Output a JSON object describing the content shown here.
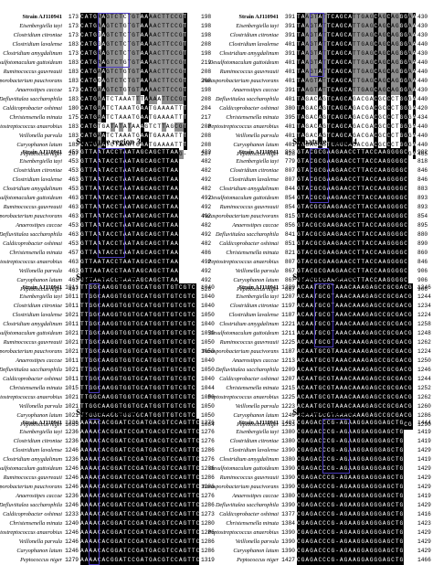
{
  "species": [
    "Strain AJ110941",
    "Eisenbergiella tayi",
    "Clostridium citroniae",
    "Clostridium lavalense",
    "Clostridium amygdalinum",
    "Desulfotomaculum guttoideum",
    "Ruminococcus gauvreauii",
    "Parasporobacterium paucivorans",
    "Anaerostipes caccae",
    "Defluviitalea saccharophila",
    "Caldicoprobacter oshimai",
    "Christensenella minuta",
    "Peptostreptococcus anaerobius",
    "Veillonella parvula",
    "Caryophanon latum",
    "Peptococcus niger"
  ],
  "panels": [
    {
      "title": "",
      "start": [
        173,
        173,
        173,
        183,
        173,
        183,
        183,
        183,
        173,
        183,
        180,
        175,
        183,
        183,
        183,
        207
      ],
      "end": [
        198,
        198,
        198,
        208,
        198,
        219,
        208,
        208,
        198,
        208,
        204,
        217,
        208,
        208,
        208,
        207
      ],
      "seq": [
        "CATGAAGTCTCTGTAAAACTTCCGT",
        "CATGAAGTCTGTGTAAAACTTCCGT",
        "CATGGAGTCTCTGTAAAACTTCCGT",
        "CATGGAGTCTCTGTAAAACTTCCGT",
        "CATGAAGTCTCTGTAAAACTTCCGT",
        "CATGAAGTCTGTGTAAAACTTCCGT",
        "CATGAAGTCTGTGTAAAACTTCCGT",
        "CATGGAGTCTCTGTAAAACTTCCGT",
        "CATGAAGTCTGTGTAAAACTTCCGT",
        "CATGAATCTAAATTTAAAATTCCGT",
        "CATGAATCTAAATGAATGAAAATTT",
        "CATGAATCTAAATGAATGAAAATTT",
        "CATGTGATATATAAAGTCTTAGCGT",
        "CATGAATCTAAATGAATGAAAATTT",
        "CATGAATCTAAATGAATGAAAATTT",
        "CCTGTA--AAACGAGGT-TTCG-G-"
      ],
      "box": [
        19,
        82,
        38,
        160
      ]
    },
    {
      "title": "",
      "start": [
        391,
        391,
        391,
        401,
        391,
        401,
        401,
        401,
        391,
        401,
        380,
        395,
        401,
        401,
        401,
        428
      ],
      "end": [
        430,
        430,
        430,
        440,
        430,
        440,
        440,
        440,
        430,
        440,
        420,
        434,
        440,
        440,
        440,
        465
      ],
      "seq": [
        "TAAGTATTCAGCATTGAGCAGCAGGGAAGA",
        "TAAGTATTCAGCATTGAGCAGCAGGGAAGA",
        "TAAGTATTCAGCATTGAGCAGCAGGGAAGA",
        "TAAGTATTCAGCATTGAGCAGCAGGGAAGA",
        "TAAGTATTCAGCATTGAGCAGCAGGGAAGA",
        "TAAGTATTCAGCATTGAGCAGCAGGGAAGA",
        "TAAGTATTCAGCATTGAGCAGCAGGGAAGA",
        "TAAGTATTCAGCATTGAGCAGCAGGGAAGA",
        "TAAGTATTCAGCATTGAGCAGCAGGGAAGA",
        "TAGACAGTCAGCAGACGACGCCCTGGGAAG",
        "TAGACAGTCAGCAGACGACGCCCTGGGAAG",
        "TAGACAGTCAGCAGACGACGCCCTGGGAAG",
        "TAGACAGTCAGCAGACGACGCCCTGGGAAG",
        "TAGACAGTCAGCAGACGACGCCCTGGGAAG",
        "TAGACAGTCAGCAGACGACGCCCTGGGAAG",
        "TAGACAGTCAGCAGACGACGCCCTGGGAAG"
      ],
      "box": [
        19,
        18,
        30,
        90
      ]
    },
    {
      "title": "Signature region 3",
      "start": [
        453,
        453,
        453,
        463,
        453,
        463,
        463,
        463,
        453,
        463,
        453,
        457,
        463,
        463,
        463,
        497
      ],
      "end": [
        482,
        482,
        482,
        492,
        482,
        492,
        492,
        492,
        482,
        492,
        482,
        486,
        492,
        492,
        492,
        526
      ],
      "seq": [
        "GTTAATACCTAATAGCAGCTTAA",
        "GTTAATACCTAATAGCAGCTTAA",
        "GTTAATACCTAATAGCAGCTTAA",
        "GTTAATACCTAATAGCAGCTTAA",
        "GTTAATACCTAATAGCAGCTTAA",
        "GTTAATACCTAATAGCAGCTTAA",
        "GTTAATACCTAATAGCAGCTTAA",
        "GTTAATACCTAATAGCAGCTTAA",
        "GTTAATACCTAATAGCAGCTTAA",
        "GTTAATACCTAATAGCAGCTTAA",
        "GTTAATACCTAATAGCAGCTTAA",
        "GTTAATACCTAATAGCAGCTTAA",
        "GTTAATACCTAATAGCAGCTTAA",
        "GTTAATACCTAATAGCAGCTTAA",
        "GTTAATACCTAATAGCAGCTTAA",
        "GTTAATACCTAATAGCAGCTTAA"
      ],
      "box": [
        18,
        4,
        8,
        130
      ]
    },
    {
      "title": "Signature region 4",
      "start": [
        863,
        779,
        807,
        807,
        844,
        854,
        854,
        815,
        856,
        841,
        851,
        821,
        807,
        867,
        867,
        867
      ],
      "end": [
        902,
        818,
        846,
        846,
        883,
        893,
        893,
        854,
        895,
        880,
        890,
        860,
        846,
        906,
        906,
        906
      ],
      "seq": [
        "GTACGCGAAGAACCTTACCAAGGGGC",
        "GTACGCGAAGAACCTTACCAAGGGGC",
        "GTACGCGAAGAACCTTACCAAGGGGC",
        "GTACGCGAAGAACCTTACCAAGGGGC",
        "GTACGCGAAGAACCTTACCAAGGGGC",
        "GTACGCGAAGAACCTTACCAAGGGGC",
        "GTACGCGAAGAACCTTACCAAGGGGC",
        "GTACGCGAAGAACCTTACCAAGGGGC",
        "GTACGCGAAGAACCTTACCAAGGGGC",
        "GTACGCGAAGAACCTTACCAAGGGGC",
        "GTACGCGAAGAACCTTACCAAGGGGC",
        "GTACGCGAAGAACCTTACCAAGGGGC",
        "GTACGCGAAGAACCTTACCAAGGGGC",
        "GTACGCGAAGAACCTTACCAAGGGGC",
        "GTACGCGAAGAACCTTACCAAGGGGC",
        "GTACGCGAAGAACCTTACCAAGGGGC"
      ],
      "box": [
        16,
        10,
        21,
        160
      ]
    },
    {
      "title": "Signature region 5",
      "start": [
        1011,
        1011,
        1011,
        1021,
        1011,
        1021,
        1021,
        1021,
        1011,
        1021,
        1011,
        1015,
        1021,
        1021,
        1021,
        1055
      ],
      "end": [
        1040,
        1040,
        1040,
        1050,
        1040,
        1050,
        1050,
        1050,
        1040,
        1050,
        1040,
        1044,
        1050,
        1050,
        1050,
        1084
      ],
      "seq": [
        "TTGGCAAGGTGGTGCATGGTTGTCGTC",
        "TTGGCAAGGTGGTGCATGGTTGTCGTC",
        "TTGGCAAGGTGGTGCATGGTTGTCGTC",
        "TTGGCAAGGTGGTGCATGGTTGTCGTC",
        "TTGGCAAGGTGGTGCATGGTTGTCGTC",
        "TTGGCAAGGTGGTGCATGGTTGTCGTC",
        "TTGGCAAGGTGGTGCATGGTTGTCGTC",
        "TTGGCAAGGTGGTGCATGGTTGTCGTC",
        "TTGGCAAGGTGGTGCATGGTTGTCGTC",
        "TTGGCAAGGTGGTGCATGGTTGTCGTC",
        "TTGGCAAGGTGGTGCATGGTTGTCGTC",
        "TTGGCAAGGTGGTGCATGGTTGTCGTC",
        "TTGGCAAGGTGGTGCATGGTTGTCGTC",
        "TTGGCAAGGTGGTGCATGGTTGTCGTC",
        "TTGGCAAGGTGGTGCATGGTTGTCGTC",
        "TTGGCAAGGTGGTGCATGGTTGTCGTC"
      ],
      "box": [
        18,
        2,
        8,
        100
      ]
    },
    {
      "title": "Signature region 6",
      "start": [
        1209,
        1207,
        1197,
        1187,
        1221,
        1211,
        1225,
        1187,
        1213,
        1209,
        1207,
        1215,
        1225,
        1223,
        1249,
        1253
      ],
      "end": [
        1246,
        1244,
        1234,
        1224,
        1258,
        1248,
        1262,
        1224,
        1250,
        1246,
        1244,
        1252,
        1262,
        1260,
        1286,
        1290
      ],
      "seq": [
        "ACAATGCGTAAACAAAGAGCCGCGACG",
        "ACAATGCGTAAACAAAGAGCCGCGACG",
        "ACAATGCGTAAACAAAGAGCCGCGACG",
        "ACAATGCGTAAACAAAGAGCCGCGACG",
        "ACAATGCGTAAACAAAGAGCCGCGACG",
        "ACAATGCGTAAACAAAGAGCCGCGACG",
        "ACAATGCGTAAACAAAGAGCCGCGACG",
        "ACAATGCGTAAACAAAGAGCCGCGACG",
        "ACAATGCGTAAACAAAGAGCCGCGACG",
        "ACAATGCGTAAACAAAGAGCCGCGACG",
        "ACAATGCGTAAACAAAGAGCCGCGACG",
        "ACAATGCGTAAACAAAGAGCCGCGACG",
        "ACAATGCGTAAACAAAGAGCCGCGACG",
        "ACAATGCGTAAACAAAGAGCCGCGACG",
        "ACAATGCGTAAACAAAGAGCCGCGACG",
        "ACAATGCGTAAACAAAGAGCCGCGACG"
      ],
      "box": [
        18,
        14,
        24,
        90
      ]
    },
    {
      "title": "Signature region 7",
      "start": [
        1236,
        1236,
        1236,
        1246,
        1236,
        1246,
        1246,
        1246,
        1236,
        1246,
        1233,
        1240,
        1246,
        1246,
        1246,
        1279
      ],
      "end": [
        1276,
        1276,
        1276,
        1286,
        1276,
        1286,
        1286,
        1286,
        1276,
        1286,
        1273,
        1280,
        1286,
        1286,
        1286,
        1319
      ],
      "seq": [
        "AAAACACGGATCCGATGACGTCCAGTTC",
        "AAAACACGGATCCGATGACGTCCAGTTC",
        "AAAACACGGATCCGATGACGTCCAGTTC",
        "AAAACACGGATCCGATGACGTCCAGTTC",
        "AAAACACGGATCCGATGACGTCCAGTTC",
        "AAAACACGGATCCGATGACGTCCAGTTC",
        "AAAACACGGATCCGATGACGTCCAGTTC",
        "AAAACACGGATCCGATGACGTCCAGTTC",
        "AAAACACGGATCCGATGACGTCCAGTTC",
        "AAAACACGGATCCGATGACGTCCAGTTC",
        "AAAACACGGATCCGATGACGTCCAGTTC",
        "AAAACACGGATCCGATGACGTCCAGTTC",
        "AAAACACGGATCCGATGACGTCCAGTTC",
        "AAAACACGGATCCGATGACGTCCAGTTC",
        "AAAACACGGATCCGATGACGTCCAGTTC",
        "AAAACACGGATCCGATGACGTCCAGTTC"
      ],
      "box": [
        18,
        8,
        14,
        40
      ]
    },
    {
      "title": "Signature region 8",
      "start": [
        1407,
        1380,
        1380,
        1390,
        1380,
        1390,
        1390,
        1390,
        1380,
        1390,
        1377,
        1384,
        1390,
        1390,
        1390,
        1427
      ],
      "end": [
        1444,
        1419,
        1419,
        1429,
        1419,
        1429,
        1429,
        1429,
        1419,
        1429,
        1416,
        1423,
        1429,
        1429,
        1429,
        1466
      ],
      "seq": [
        "CGAGACCCG-AGAAGGAGGGAGCTG",
        "CGAGACCCG-AGAAGGAGGGAGCTG",
        "CGAGACCCG-AGAAGGAGGGAGCTG",
        "CGAGACCCG-AGAAGGAGGGAGCTG",
        "CGAGACCCG-AGAAGGAGGGAGCTG",
        "CGAGACCCG-AGAAGGAGGGAGCTG",
        "CGAGACCCG-AGAAGGAGGGAGCTG",
        "CGAGACCCG-AGAAGGAGGGAGCTG",
        "CGAGACCCG-AGAAGGAGGGAGCTG",
        "CGAGACCCG-AGAAGGAGGGAGCTG",
        "CGAGACCCG-AGAAGGAGGGAGCTG",
        "CGAGACCCG-AGAAGGAGGGAGCTG",
        "CGAGACCCG-AGAAGGAGGGAGCTG",
        "CGAGACCCG-AGAAGGAGGGAGCTG",
        "CGAGACCCG-AGAAGGAGGGAGCTG",
        "CGAGACCCG-AGAAGGAGGGAGCTG"
      ],
      "box": [
        18,
        8,
        20,
        90
      ]
    }
  ],
  "colors": {
    "conserved": "#000000",
    "partial": "#8e8e8e",
    "box": "#4b3bbd"
  }
}
